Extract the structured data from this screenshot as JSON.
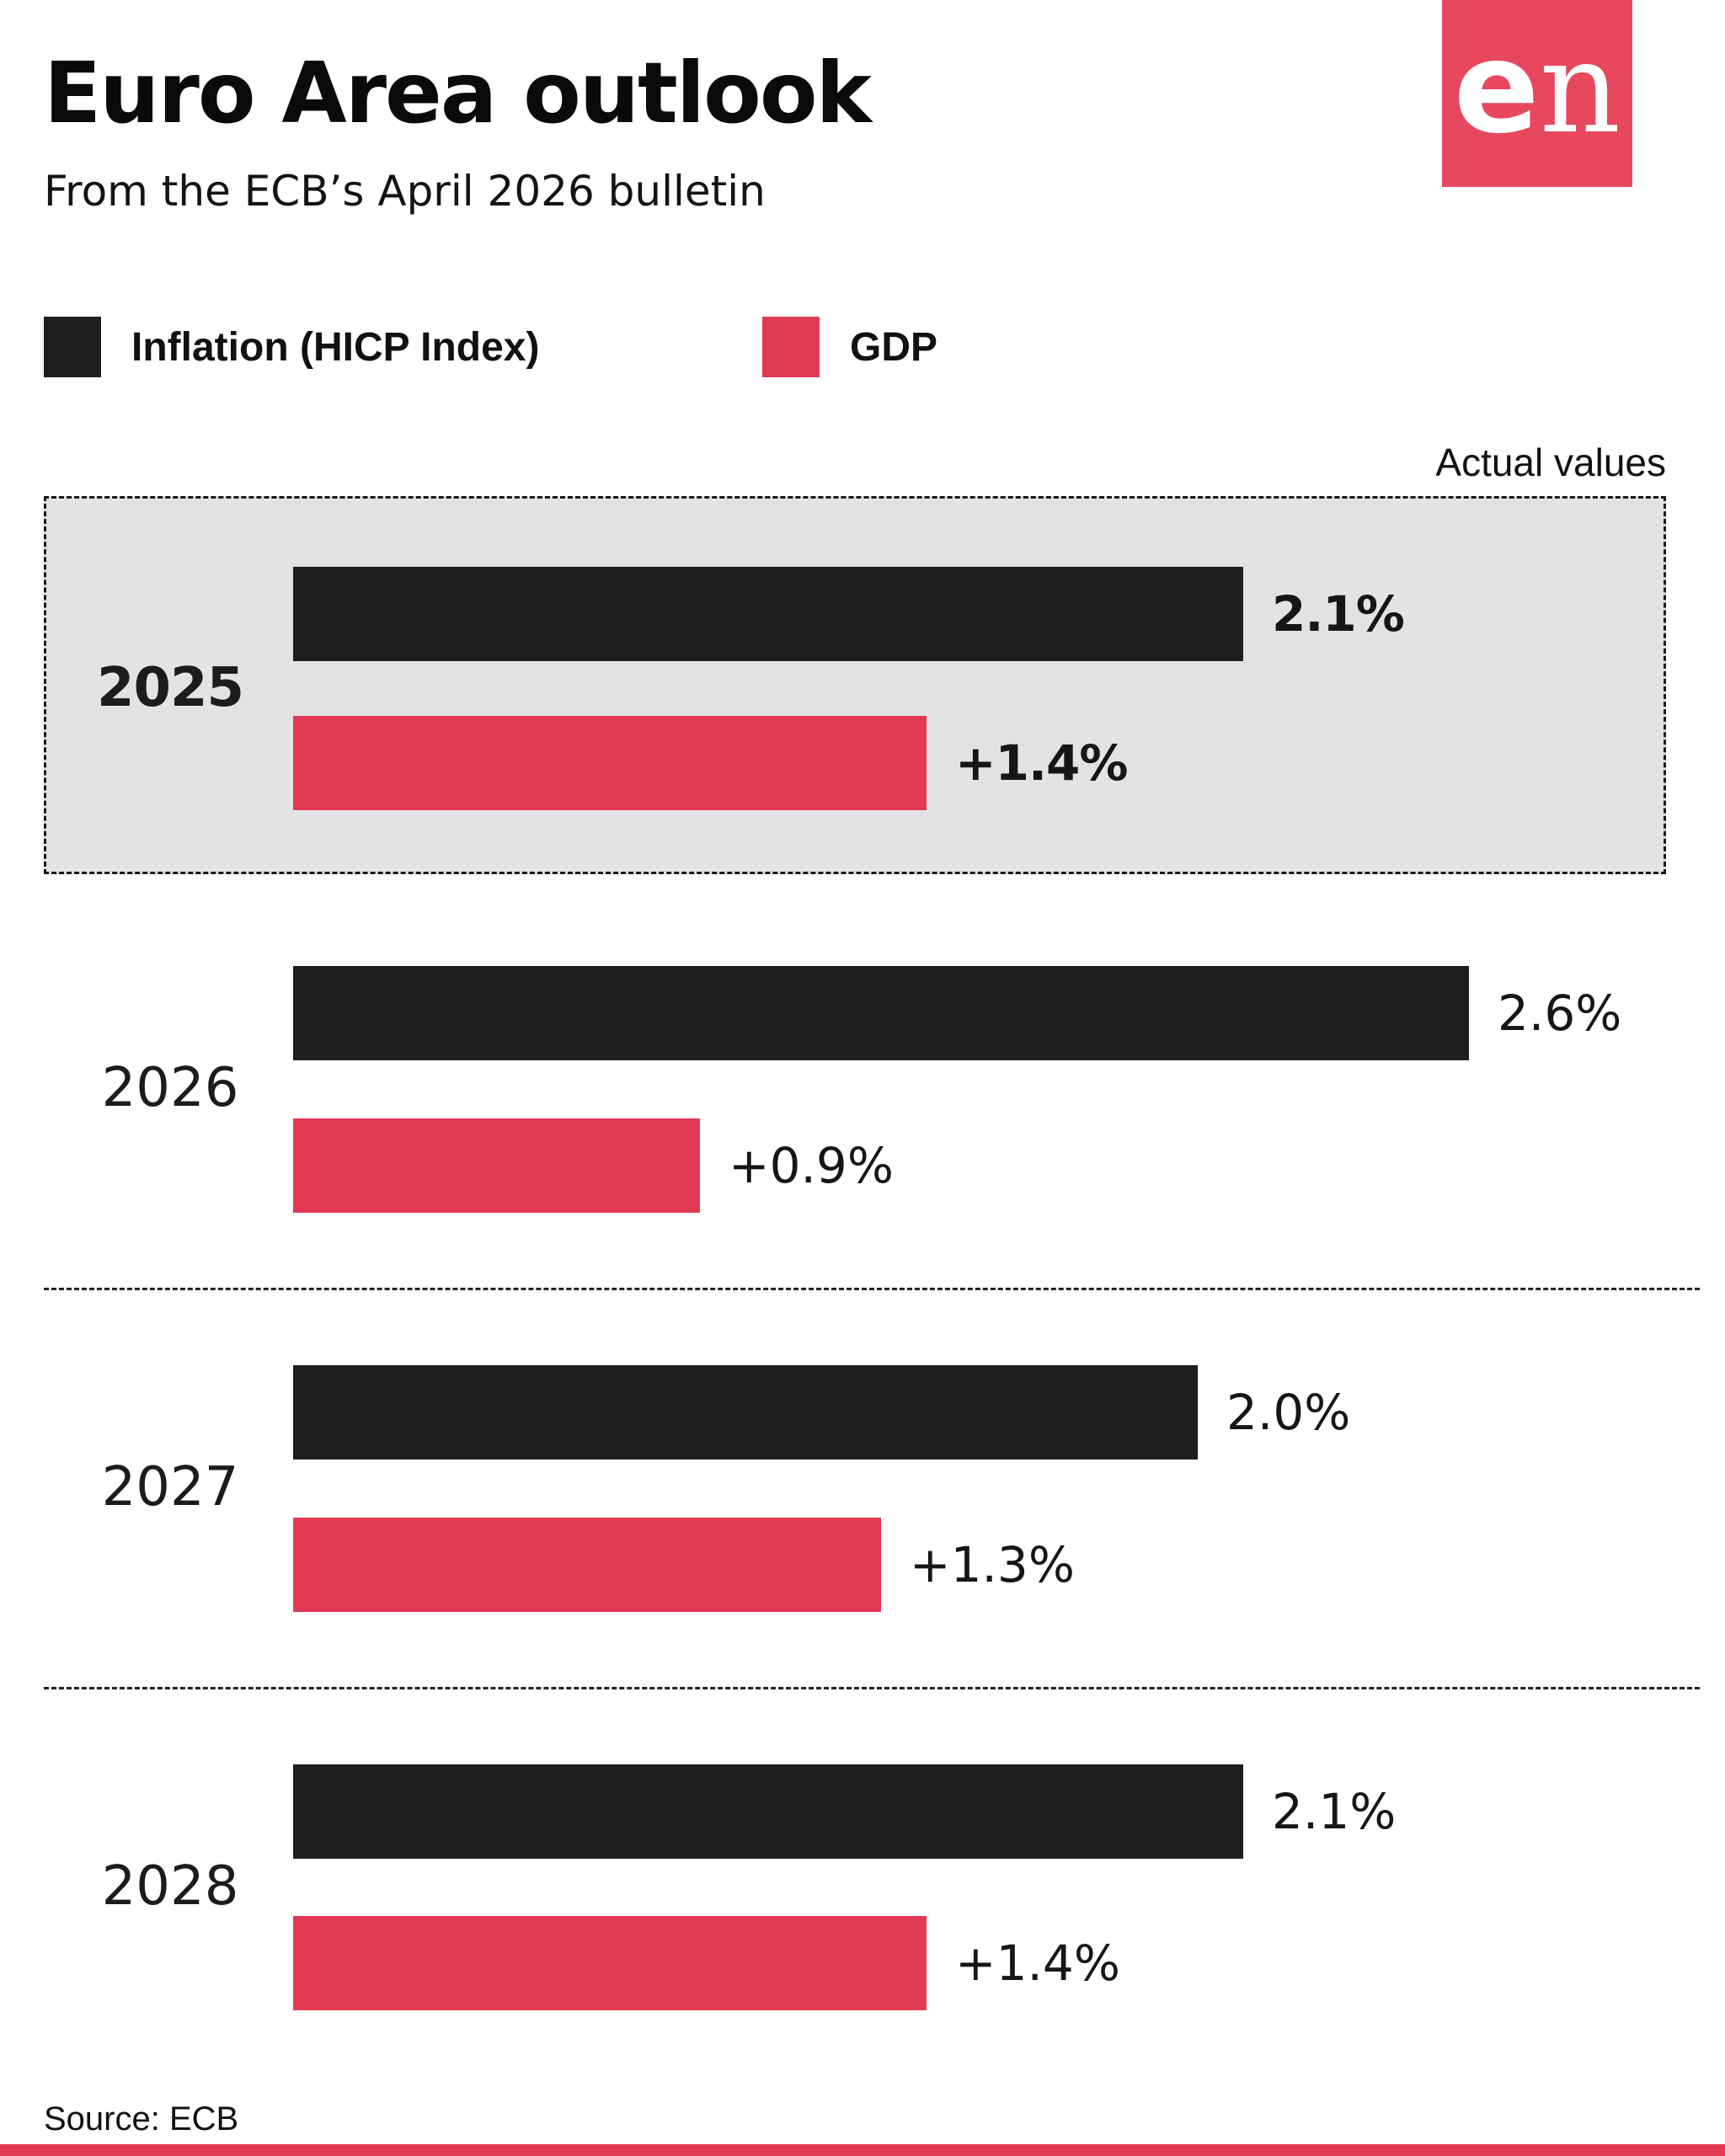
{
  "header": {
    "title": "Euro Area outlook",
    "subtitle": "From the ECB’s April 2026 bulletin"
  },
  "logo": {
    "text_e": "e",
    "text_n": "n",
    "bg_color": "#e8485e",
    "text_color": "#ffffff"
  },
  "legend": {
    "items": [
      {
        "label": "Inflation (HICP Index)",
        "color": "#1f1e1e"
      },
      {
        "label": "GDP",
        "color": "#e23a55"
      }
    ]
  },
  "annotations": {
    "actual_values_label": "Actual values"
  },
  "footer": {
    "source": "Source: ECB",
    "accent_bar_color": "#e23a55"
  },
  "chart_data": {
    "type": "bar",
    "orientation": "horizontal",
    "title": "Euro Area outlook",
    "subtitle": "From the ECB’s April 2026 bulletin",
    "categories": [
      "2025",
      "2026",
      "2027",
      "2028"
    ],
    "series": [
      {
        "name": "Inflation (HICP Index)",
        "color": "#1f1e1e",
        "values": [
          2.1,
          2.6,
          2.0,
          2.1
        ],
        "labels": [
          "2.1%",
          "2.6%",
          "2.0%",
          "2.1%"
        ]
      },
      {
        "name": "GDP",
        "color": "#e23a55",
        "values": [
          1.4,
          0.9,
          1.3,
          1.4
        ],
        "labels": [
          "+1.4%",
          "+0.9%",
          "+1.3%",
          "+1.4%"
        ]
      }
    ],
    "highlighted_category": "2025",
    "highlight_note": "Actual values",
    "xlim": [
      0,
      3.2
    ],
    "grid": false,
    "legend_position": "top-left",
    "value_labels": "outside-end",
    "source": "ECB"
  }
}
